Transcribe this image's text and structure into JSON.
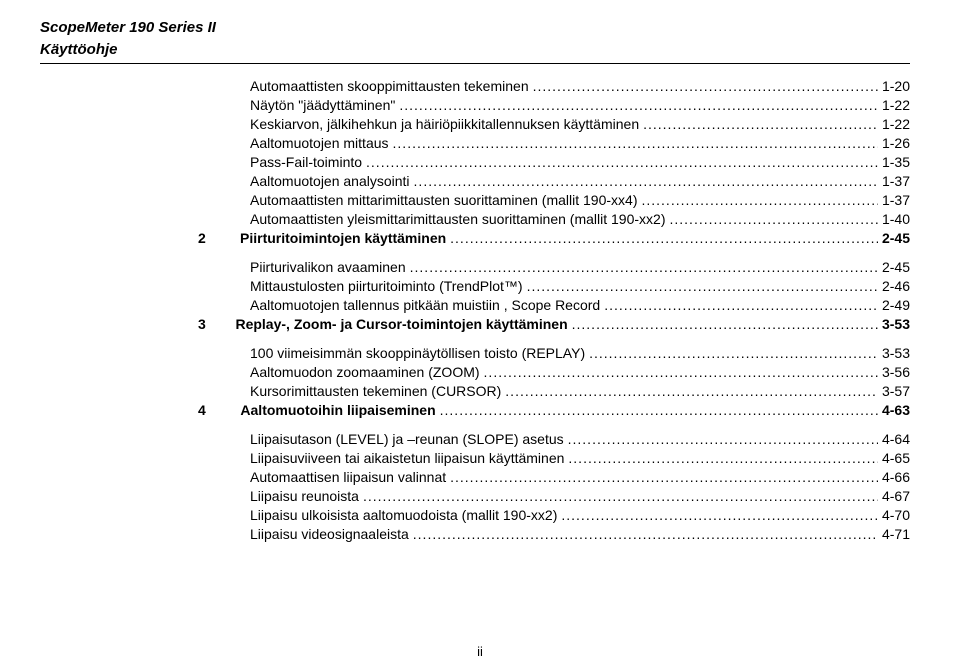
{
  "header": {
    "title": "ScopeMeter 190 Series II",
    "subtitle": "Käyttöohje"
  },
  "toc": [
    {
      "indent": 0,
      "bold": false,
      "title": "Automaattisten skooppimittausten tekeminen",
      "page": "1-20"
    },
    {
      "indent": 0,
      "bold": false,
      "title": "Näytön \"jäädyttäminen\"",
      "page": "1-22"
    },
    {
      "indent": 0,
      "bold": false,
      "title": "Keskiarvon, jälkihehkun ja häiriöpiikkitallennuksen käyttäminen",
      "page": "1-22"
    },
    {
      "indent": 0,
      "bold": false,
      "title": "Aaltomuotojen mittaus",
      "page": "1-26"
    },
    {
      "indent": 0,
      "bold": false,
      "title": "Pass-Fail-toiminto",
      "page": "1-35"
    },
    {
      "indent": 0,
      "bold": false,
      "title": "Aaltomuotojen analysointi",
      "page": "1-37"
    },
    {
      "indent": 0,
      "bold": false,
      "title": "Automaattisten mittarimittausten suorittaminen (mallit 190-xx4)",
      "page": "1-37"
    },
    {
      "indent": 0,
      "bold": false,
      "title": "Automaattisten yleismittarimittausten suorittaminen (mallit 190-xx2)",
      "page": "1-40"
    },
    {
      "num": "2",
      "indent": 0,
      "bold": true,
      "title": "Piirturitoimintojen käyttäminen",
      "page": "2-45"
    },
    {
      "gap": true
    },
    {
      "indent": 0,
      "bold": false,
      "title": "Piirturivalikon avaaminen",
      "page": "2-45"
    },
    {
      "indent": 0,
      "bold": false,
      "title": "Mittaustulosten piirturitoiminto (TrendPlot™)",
      "page": "2-46"
    },
    {
      "indent": 0,
      "bold": false,
      "title": "Aaltomuotojen tallennus pitkään muistiin , Scope Record",
      "page": "2-49"
    },
    {
      "num": "3",
      "indent": 0,
      "bold": true,
      "title": "Replay-, Zoom- ja Cursor-toimintojen käyttäminen",
      "page": "3-53"
    },
    {
      "gap": true
    },
    {
      "indent": 0,
      "bold": false,
      "title": "100 viimeisimmän skooppinäytöllisen toisto (REPLAY)",
      "page": "3-53"
    },
    {
      "indent": 0,
      "bold": false,
      "title": "Aaltomuodon zoomaaminen (ZOOM)",
      "page": "3-56"
    },
    {
      "indent": 0,
      "bold": false,
      "title": "Kursorimittausten tekeminen (CURSOR)",
      "page": "3-57"
    },
    {
      "num": "4",
      "indent": 0,
      "bold": true,
      "title": "Aaltomuotoihin liipaiseminen",
      "page": "4-63"
    },
    {
      "gap": true
    },
    {
      "indent": 0,
      "bold": false,
      "title": "Liipaisutason (LEVEL) ja –reunan (SLOPE) asetus",
      "page": "4-64"
    },
    {
      "indent": 0,
      "bold": false,
      "title": "Liipaisuviiveen tai aikaistetun liipaisun käyttäminen",
      "page": "4-65"
    },
    {
      "indent": 0,
      "bold": false,
      "title": "Automaattisen liipaisun valinnat",
      "page": "4-66"
    },
    {
      "indent": 0,
      "bold": false,
      "title": "Liipaisu reunoista",
      "page": "4-67"
    },
    {
      "indent": 0,
      "bold": false,
      "title": "Liipaisu ulkoisista aaltomuodoista (mallit 190-xx2)",
      "page": "4-70"
    },
    {
      "indent": 0,
      "bold": false,
      "title": "Liipaisu videosignaaleista",
      "page": "4-71"
    }
  ],
  "pageNumber": "ii"
}
